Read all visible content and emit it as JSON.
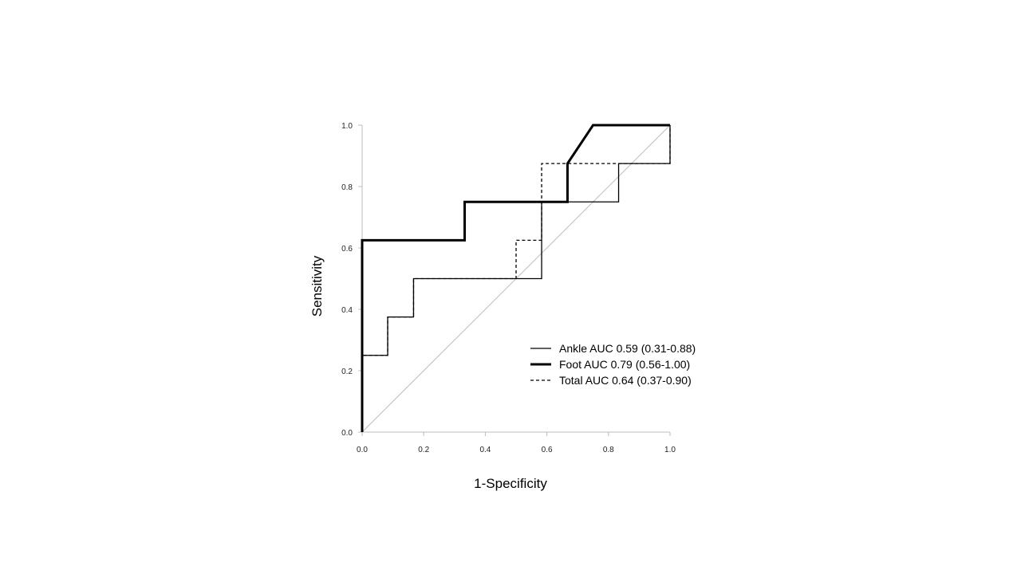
{
  "chart_data": {
    "type": "line",
    "xlabel": "1-Specificity",
    "ylabel": "Sensitivity",
    "xlim": [
      0,
      1
    ],
    "ylim": [
      0,
      1
    ],
    "xticks": [
      "0.0",
      "0.2",
      "0.4",
      "0.6",
      "0.8",
      "1.0"
    ],
    "yticks": [
      "0.0",
      "0.2",
      "0.4",
      "0.6",
      "0.8",
      "1.0"
    ],
    "grid": false,
    "legend_position": "lower-right",
    "reference_line": {
      "points": [
        [
          0,
          0
        ],
        [
          1,
          1
        ]
      ],
      "color": "#bdbdbd"
    },
    "series": [
      {
        "name": "Ankle AUC 0.59 (0.31-0.88)",
        "style": "solid-thin",
        "color": "#000000",
        "points": [
          [
            0,
            0
          ],
          [
            0,
            0.25
          ],
          [
            0.083,
            0.25
          ],
          [
            0.083,
            0.375
          ],
          [
            0.167,
            0.375
          ],
          [
            0.167,
            0.5
          ],
          [
            0.583,
            0.5
          ],
          [
            0.583,
            0.75
          ],
          [
            0.833,
            0.75
          ],
          [
            0.833,
            0.875
          ],
          [
            1,
            0.875
          ],
          [
            1,
            1
          ]
        ]
      },
      {
        "name": "Foot AUC 0.79 (0.56-1.00)",
        "style": "solid-thick",
        "color": "#000000",
        "points": [
          [
            0,
            0
          ],
          [
            0,
            0.625
          ],
          [
            0.333,
            0.625
          ],
          [
            0.333,
            0.75
          ],
          [
            0.667,
            0.75
          ],
          [
            0.667,
            0.875
          ],
          [
            0.75,
            1
          ],
          [
            1,
            1
          ]
        ]
      },
      {
        "name": "Total AUC 0.64 (0.37-0.90)",
        "style": "dashed",
        "color": "#000000",
        "points": [
          [
            0,
            0
          ],
          [
            0,
            0.25
          ],
          [
            0.083,
            0.25
          ],
          [
            0.083,
            0.375
          ],
          [
            0.167,
            0.375
          ],
          [
            0.167,
            0.5
          ],
          [
            0.5,
            0.5
          ],
          [
            0.5,
            0.625
          ],
          [
            0.583,
            0.625
          ],
          [
            0.583,
            0.875
          ],
          [
            1,
            0.875
          ],
          [
            1,
            1
          ]
        ]
      }
    ]
  }
}
